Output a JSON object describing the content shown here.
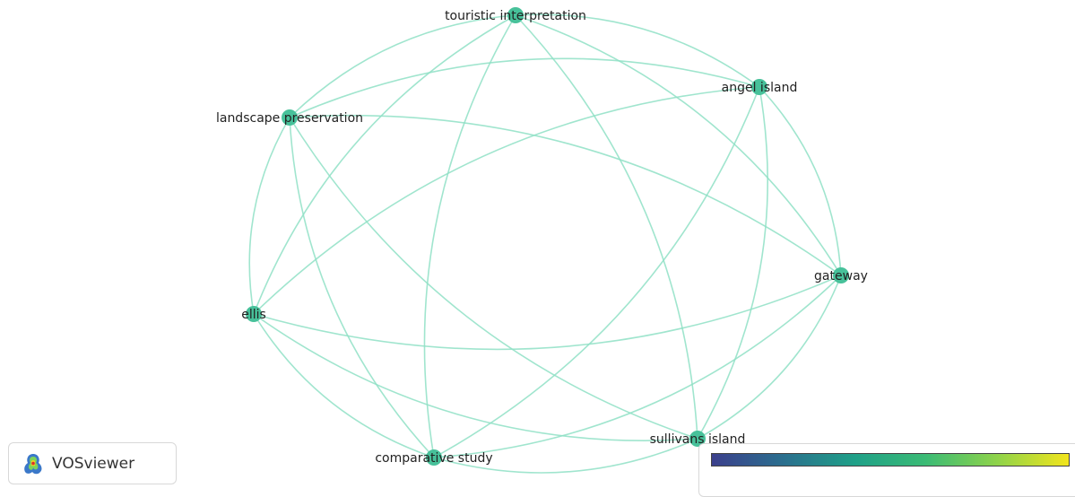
{
  "app": {
    "brand_name": "VOSviewer",
    "brand_icon": "vosviewer-logo-icon"
  },
  "network": {
    "node_color": "#47c19a",
    "edge_color": "#8fe0c6",
    "nodes": [
      {
        "id": "touristic-interpretation",
        "label": "touristic interpretation"
      },
      {
        "id": "angel-island",
        "label": "angel island"
      },
      {
        "id": "landscape-preservation",
        "label": "landscape preservation"
      },
      {
        "id": "gateway",
        "label": "gateway"
      },
      {
        "id": "ellis",
        "label": "ellis"
      },
      {
        "id": "comparative-study",
        "label": "comparative study"
      },
      {
        "id": "sullivans-island",
        "label": "sullivans island"
      }
    ],
    "edges": [
      [
        "touristic-interpretation",
        "angel-island"
      ],
      [
        "touristic-interpretation",
        "landscape-preservation"
      ],
      [
        "touristic-interpretation",
        "gateway"
      ],
      [
        "touristic-interpretation",
        "ellis"
      ],
      [
        "touristic-interpretation",
        "comparative-study"
      ],
      [
        "touristic-interpretation",
        "sullivans-island"
      ],
      [
        "angel-island",
        "landscape-preservation"
      ],
      [
        "angel-island",
        "gateway"
      ],
      [
        "angel-island",
        "ellis"
      ],
      [
        "angel-island",
        "comparative-study"
      ],
      [
        "angel-island",
        "sullivans-island"
      ],
      [
        "landscape-preservation",
        "gateway"
      ],
      [
        "landscape-preservation",
        "ellis"
      ],
      [
        "landscape-preservation",
        "comparative-study"
      ],
      [
        "landscape-preservation",
        "sullivans-island"
      ],
      [
        "gateway",
        "ellis"
      ],
      [
        "gateway",
        "comparative-study"
      ],
      [
        "gateway",
        "sullivans-island"
      ],
      [
        "ellis",
        "comparative-study"
      ],
      [
        "ellis",
        "sullivans-island"
      ],
      [
        "comparative-study",
        "sullivans-island"
      ]
    ]
  },
  "legend": {
    "color_scale": [
      "#3b3f8c",
      "#2b6f8e",
      "#1fa088",
      "#3bbb75",
      "#8fd34a",
      "#f2e51d"
    ]
  }
}
